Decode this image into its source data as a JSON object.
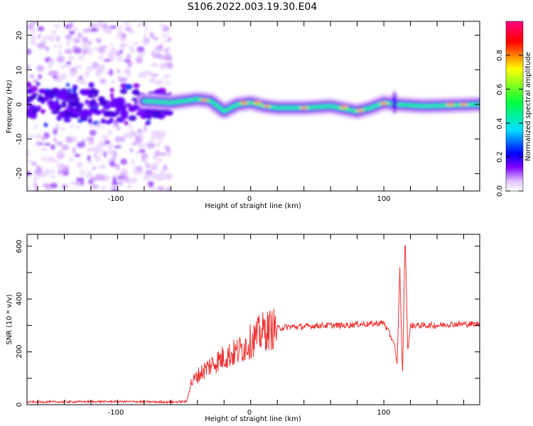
{
  "title": "S106.2022.003.19.30.E04",
  "chart_data": [
    {
      "type": "heatmap",
      "xlabel": "Height of straight line (km)",
      "ylabel": "Frequency (Hz)",
      "xlim": [
        -168,
        172
      ],
      "ylim": [
        -25,
        24
      ],
      "x_ticks": [
        "-100",
        "0",
        "100"
      ],
      "y_ticks": [
        "20",
        "10",
        "0",
        "-10",
        "-20"
      ],
      "colorbar": {
        "label": "Normalized spectral amplitude",
        "range": [
          0,
          1
        ],
        "ticks": [
          "0.0",
          "0.2",
          "0.4",
          "0.6",
          "0.8"
        ],
        "colors": [
          "#ffffff",
          "#e0c0ff",
          "#8000ff",
          "#0000ff",
          "#00e0ff",
          "#00ff40",
          "#ffff00",
          "#ff0000",
          "#ff0080"
        ]
      },
      "ridge": {
        "x": [
          -80,
          -60,
          -40,
          -30,
          -20,
          -10,
          0,
          10,
          20,
          40,
          60,
          80,
          90,
          100,
          110,
          130,
          172
        ],
        "y": [
          1.0,
          0.5,
          1.5,
          1.0,
          -2.0,
          0.0,
          0.5,
          -0.5,
          -1.0,
          -1.0,
          -0.5,
          -2.0,
          -1.0,
          0.5,
          0.0,
          -0.5,
          0.0
        ]
      },
      "noise_region_x": [
        -168,
        -60
      ]
    },
    {
      "type": "line",
      "xlabel": "Height of straight line (km)",
      "ylabel": "SNR (10 * v/v)",
      "xlim": [
        -168,
        172
      ],
      "ylim": [
        0,
        645
      ],
      "x_ticks": [
        "-100",
        "0",
        "100"
      ],
      "y_ticks": [
        "0",
        "200",
        "400",
        "600"
      ],
      "color": "#ee3333",
      "series": [
        {
          "x": [
            -168,
            -100,
            -60,
            -48,
            -45,
            -40,
            -30,
            -20,
            -10,
            0,
            10,
            20,
            30,
            40,
            50,
            60,
            70,
            80,
            90,
            100,
            108,
            110,
            112,
            114,
            116,
            118,
            120,
            130,
            140,
            150,
            160,
            172
          ],
          "values": [
            10,
            12,
            10,
            12,
            80,
            110,
            150,
            180,
            200,
            240,
            280,
            290,
            295,
            295,
            300,
            300,
            300,
            305,
            305,
            310,
            230,
            150,
            520,
            100,
            645,
            200,
            300,
            300,
            300,
            305,
            305,
            305
          ]
        }
      ]
    }
  ]
}
